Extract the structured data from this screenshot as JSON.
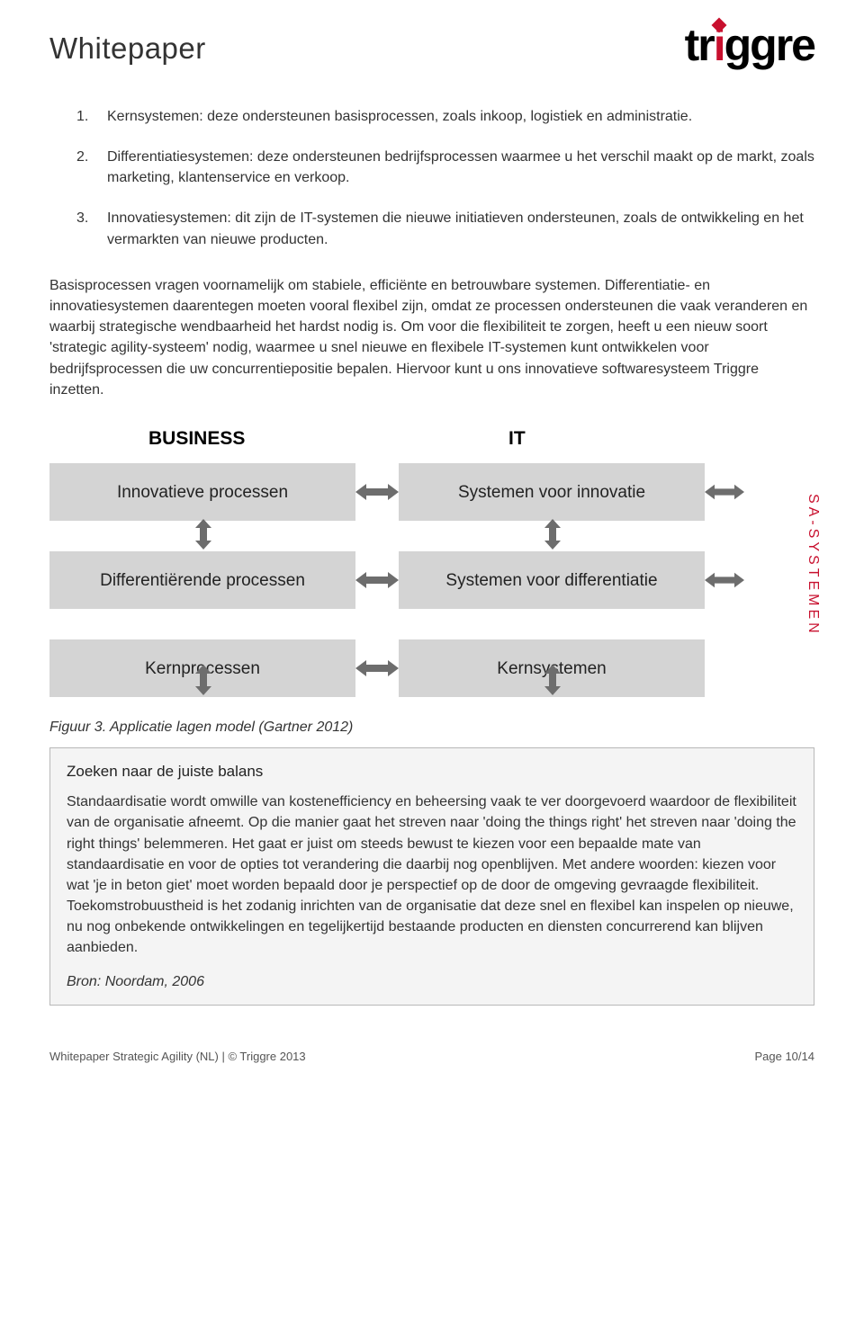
{
  "header": {
    "title": "Whitepaper",
    "logo_left": "tr",
    "logo_accent": "i",
    "logo_right": "ggre"
  },
  "list": [
    "Kernsystemen: deze ondersteunen basisprocessen, zoals inkoop, logistiek en administratie.",
    "Differentiatiesystemen: deze ondersteunen bedrijfsprocessen waarmee u het verschil maakt op de markt, zoals marketing, klantenservice en verkoop.",
    "Innovatiesystemen: dit zijn de IT-systemen die nieuwe initiatieven ondersteunen, zoals de ontwikkeling en het vermarkten van nieuwe producten."
  ],
  "paragraph": "Basisprocessen vragen voornamelijk om stabiele, efficiënte en betrouwbare systemen. Differentiatie- en innovatiesystemen daarentegen moeten vooral flexibel zijn, omdat ze processen ondersteunen die vaak veranderen en waarbij strategische wendbaarheid het hardst nodig is. Om voor die flexibiliteit te zorgen, heeft u een nieuw soort 'strategic agility-systeem' nodig, waarmee u snel nieuwe en flexibele IT-systemen kunt ontwikkelen voor bedrijfsprocessen die uw concurrentiepositie bepalen. Hiervoor kunt u ons innovatieve softwaresysteem Triggre inzetten.",
  "diagram": {
    "type": "flowchart",
    "header_business": "BUSINESS",
    "header_it": "IT",
    "sa_label": "SA-SYSTEMEN",
    "box_bg": "#d4d4d4",
    "arrow_fill": "#6d6d6d",
    "accent_color": "#c8102e",
    "rows": [
      {
        "left": "Innovatieve processen",
        "right": "Systemen voor innovatie",
        "sa": true
      },
      {
        "left": "Differentiërende processen",
        "right": "Systemen voor differentiatie",
        "sa": true
      },
      {
        "left": "Kernprocessen",
        "right": "Kernsystemen",
        "sa": false
      }
    ]
  },
  "caption": "Figuur 3. Applicatie lagen model (Gartner 2012)",
  "inset": {
    "title": "Zoeken naar de juiste balans",
    "body": "Standaardisatie wordt omwille van kostenefficiency en beheersing vaak te ver doorgevoerd waardoor de flexibiliteit van de organisatie afneemt. Op die manier gaat het streven naar 'doing the things right' het streven naar 'doing the right things' belemmeren. Het gaat er juist om steeds bewust te kiezen voor een bepaalde mate van standaardisatie en voor de opties tot verandering die daarbij nog openblijven. Met andere woorden: kiezen voor wat 'je in beton giet' moet worden bepaald door je perspectief op de door de omgeving gevraagde flexibiliteit. Toekomstrobuustheid is het zodanig inrichten van de organisatie dat deze snel en flexibel kan inspelen op nieuwe, nu nog onbekende ontwikkelingen en tegelijkertijd bestaande producten en diensten concurrerend kan blijven aanbieden.",
    "source": "Bron: Noordam, 2006"
  },
  "footer": {
    "left": "Whitepaper Strategic Agility (NL) | © Triggre 2013",
    "right": "Page 10/14"
  }
}
